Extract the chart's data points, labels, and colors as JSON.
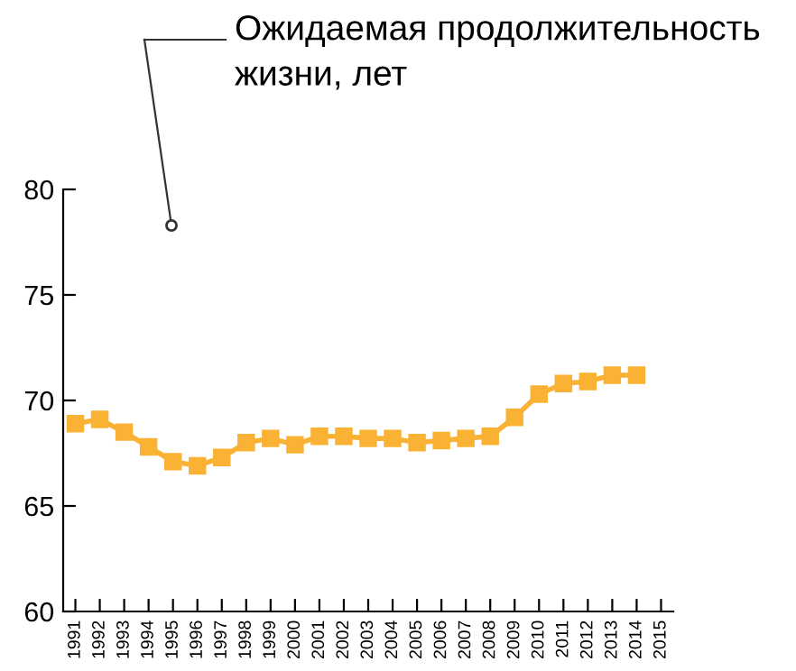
{
  "chart_data": {
    "type": "line",
    "title": "Ожидаемая продолжительность\nжизни, лет",
    "categories": [
      "1991",
      "1992",
      "1993",
      "1994",
      "1995",
      "1996",
      "1997",
      "1998",
      "1999",
      "2000",
      "2001",
      "2002",
      "2003",
      "2004",
      "2005",
      "2006",
      "2007",
      "2008",
      "2009",
      "2010",
      "2011",
      "2012",
      "2013",
      "2014",
      "2015"
    ],
    "series": [
      {
        "color": "#f9b233",
        "values": [
          68.9,
          69.1,
          68.5,
          67.8,
          67.1,
          66.9,
          67.3,
          68.0,
          68.2,
          67.9,
          68.3,
          68.3,
          68.2,
          68.2,
          68.0,
          68.1,
          68.2,
          68.3,
          69.2,
          70.3,
          70.8,
          70.9,
          71.2,
          71.2,
          null
        ]
      }
    ],
    "ylim": [
      60,
      80
    ],
    "yticks": [
      60,
      65,
      70,
      75,
      80
    ],
    "marker": "square",
    "line_style": "solid",
    "grid": false,
    "legend": false
  }
}
